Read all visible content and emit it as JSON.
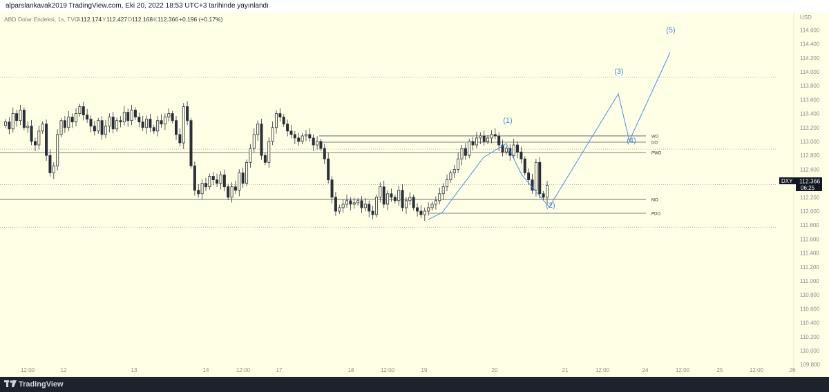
{
  "header": {
    "publish_text": "alparslankavak2019 TradingView.com, Eki 20, 2022 18:53 UTC+3 tarihinde yayınlandı"
  },
  "legend": {
    "symbol_name": "ABD Dolar Endeksi, 1s, TVC",
    "open_label": "A",
    "open": "112.174",
    "high_label": "Y",
    "high": "112.427",
    "low_label": "D",
    "low": "112.168",
    "close_label": "K",
    "close": "112.366",
    "change": "+0.196 (+0.17%)"
  },
  "price_tag": {
    "ticker": "DXY",
    "price": "112.366",
    "countdown": "06:25"
  },
  "footer": {
    "brand": "TradingView"
  },
  "colors": {
    "background": "#ffffe6",
    "candle_body": "#2a2e39",
    "wave_line": "#4a8be0",
    "level_line": "#555555",
    "axis_text": "#8a8a8a",
    "tag_bg": "#131722"
  },
  "chart_data": {
    "type": "candlestick",
    "currency_label": "USD",
    "ylim": [
      109.8,
      114.7
    ],
    "y_ticks": [
      "114.600",
      "114.400",
      "114.200",
      "114.000",
      "113.800",
      "113.600",
      "113.400",
      "113.200",
      "113.000",
      "112.800",
      "112.600",
      "112.400",
      "112.200",
      "112.000",
      "111.800",
      "111.600",
      "111.400",
      "111.200",
      "111.000",
      "110.800",
      "110.600",
      "110.400",
      "110.200",
      "110.000",
      "109.800"
    ],
    "x_ticks": [
      "12:00",
      "12",
      "13",
      "14",
      "12:00",
      "17",
      "18",
      "12:00",
      "19",
      "20",
      "21",
      "12:00",
      "24",
      "12:00",
      "25",
      "12:00",
      "26"
    ],
    "levels": [
      {
        "label": "WO",
        "value": 113.08
      },
      {
        "label": "DO",
        "value": 112.99
      },
      {
        "label": "PWO",
        "value": 112.84
      },
      {
        "label": "MO",
        "value": 112.17
      },
      {
        "label": "PDO",
        "value": 111.97
      }
    ],
    "dotted_levels": [
      113.92,
      112.89,
      112.38,
      111.77
    ],
    "waves": [
      {
        "label": "(1)",
        "value": 113.2
      },
      {
        "label": "(2)",
        "value": 112.2
      },
      {
        "label": "(3)",
        "value": 113.8
      },
      {
        "label": "(4)",
        "value": 113.1
      },
      {
        "label": "(5)",
        "value": 114.4
      }
    ],
    "close_series": [
      113.28,
      113.18,
      113.4,
      113.3,
      113.45,
      113.2,
      113.22,
      113.0,
      112.95,
      113.15,
      113.25,
      112.8,
      112.55,
      112.65,
      113.1,
      113.3,
      113.2,
      113.35,
      113.28,
      113.4,
      113.5,
      113.38,
      113.32,
      113.22,
      113.15,
      113.3,
      113.1,
      113.22,
      113.35,
      113.18,
      113.3,
      113.28,
      113.42,
      113.3,
      113.45,
      113.35,
      113.28,
      113.2,
      113.32,
      113.2,
      113.15,
      113.3,
      113.25,
      113.35,
      113.4,
      113.3,
      113.1,
      112.98,
      113.5,
      113.3,
      112.65,
      112.3,
      112.25,
      112.4,
      112.35,
      112.5,
      112.45,
      112.4,
      112.52,
      112.35,
      112.2,
      112.35,
      112.3,
      112.55,
      112.4,
      112.7,
      112.9,
      113.1,
      113.25,
      112.8,
      112.7,
      113.0,
      113.2,
      113.4,
      113.35,
      113.25,
      113.15,
      113.1,
      113.05,
      113.0,
      113.08,
      113.1,
      113.05,
      112.95,
      113.0,
      112.9,
      112.75,
      112.45,
      112.2,
      112.0,
      112.05,
      112.1,
      112.15,
      112.1,
      112.12,
      112.15,
      112.05,
      112.1,
      112.0,
      111.95,
      112.2,
      112.35,
      112.1,
      112.25,
      112.2,
      112.15,
      112.3,
      112.05,
      112.15,
      112.2,
      112.05,
      112.0,
      111.95,
      112.0,
      112.05,
      112.1,
      112.15,
      112.25,
      112.35,
      112.45,
      112.55,
      112.6,
      112.75,
      112.9,
      112.8,
      113.0,
      112.95,
      113.05,
      113.08,
      113.0,
      113.05,
      113.1,
      113.08,
      112.95,
      112.85,
      112.9,
      112.8,
      112.95,
      112.85,
      112.75,
      112.55,
      112.45,
      112.3,
      112.7,
      112.25,
      112.2,
      112.37
    ]
  }
}
